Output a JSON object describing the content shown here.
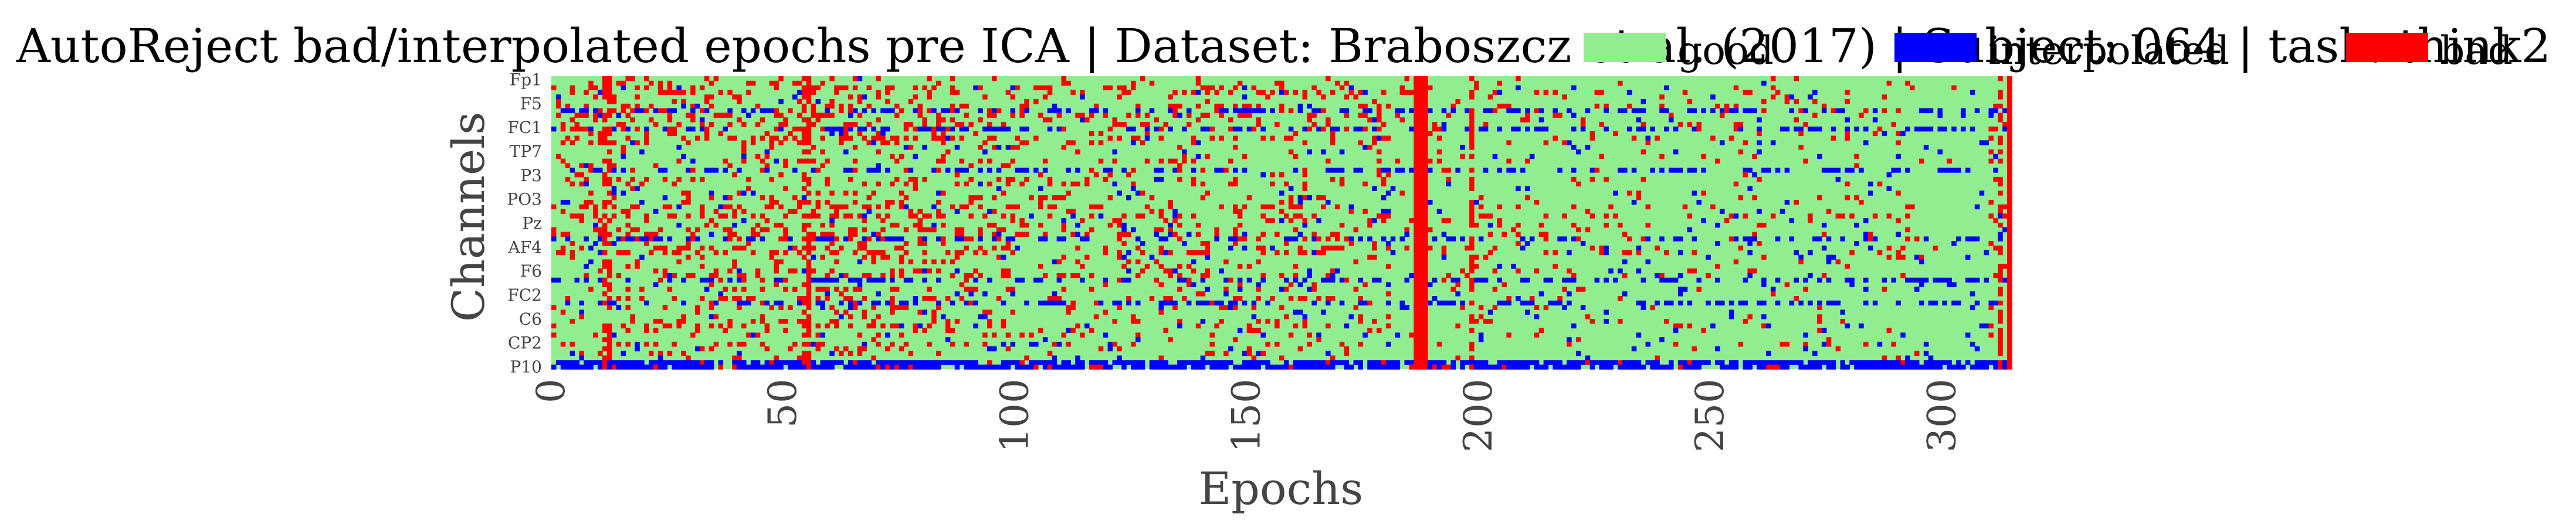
{
  "chart_data": {
    "type": "heatmap",
    "title": "AutoReject bad/interpolated epochs pre ICA | Dataset: Braboszcz et al. (2017) | Subject: 064 | task: think2",
    "xlabel": "Epochs",
    "ylabel": "Channels",
    "x_ticks": [
      0,
      50,
      100,
      150,
      200,
      250,
      300
    ],
    "xlim": [
      0,
      315
    ],
    "n_epochs": 315,
    "n_channels": 64,
    "y_tick_labels": [
      "Fp1",
      "F5",
      "FC1",
      "TP7",
      "P3",
      "PO3",
      "Pz",
      "AF4",
      "F6",
      "FC2",
      "C6",
      "CP2",
      "P10"
    ],
    "legend": [
      {
        "name": "good",
        "color": "#90ee90"
      },
      {
        "name": "interpolated",
        "color": "#0000ff"
      },
      {
        "name": "bad",
        "color": "#ff0000"
      }
    ],
    "cell_values": {
      "good": 0,
      "interpolated": 1,
      "bad": 2
    },
    "fully_bad_epochs": [
      186,
      187,
      188,
      314
    ],
    "mostly_bad_epochs": [
      11,
      12,
      54,
      55,
      198,
      312
    ],
    "legend_placement": "top-right",
    "grid": false
  }
}
